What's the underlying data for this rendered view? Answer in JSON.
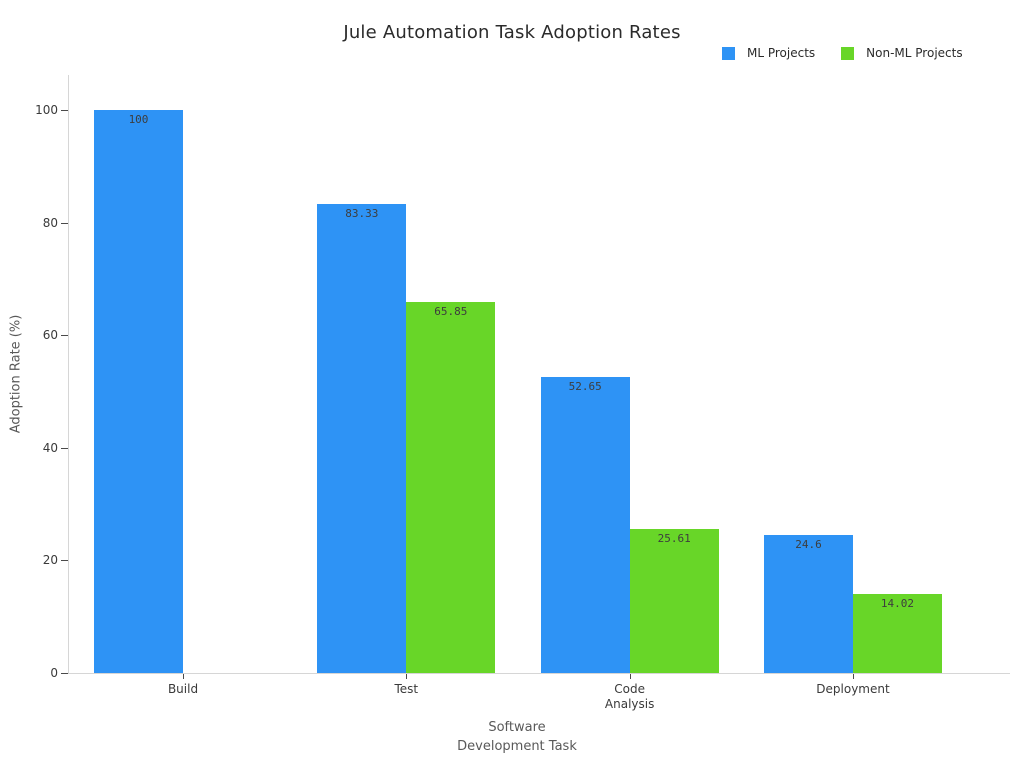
{
  "chart_data": {
    "type": "bar",
    "title": "Jule Automation Task Adoption Rates",
    "xlabel": "Software\nDevelopment Task",
    "ylabel": "Adoption Rate (%)",
    "categories": [
      "Build",
      "Test",
      "Code\nAnalysis",
      "Deployment"
    ],
    "series": [
      {
        "name": "ML Projects",
        "color": "#2e93f5",
        "values": [
          100,
          83.33,
          52.65,
          24.6
        ],
        "labels": [
          "100",
          "83.33",
          "52.65",
          "24.6"
        ]
      },
      {
        "name": "Non-ML Projects",
        "color": "#68d628",
        "values": [
          0,
          65.85,
          25.61,
          14.02
        ],
        "labels": [
          "",
          "65.85",
          "25.61",
          "14.02"
        ]
      }
    ],
    "ylim": [
      0,
      100
    ],
    "yticks": [
      0,
      20,
      40,
      60,
      80,
      100
    ],
    "grid": false,
    "legend_position": "top-right",
    "bar_value_labels": true
  }
}
